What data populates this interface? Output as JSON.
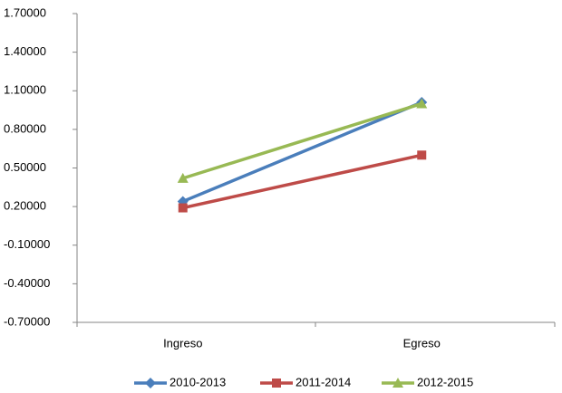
{
  "chart_data": {
    "type": "line",
    "categories": [
      "Ingreso",
      "Egreso"
    ],
    "series": [
      {
        "name": "2010-2013",
        "color": "#4a7ebb",
        "marker": "diamond",
        "values": [
          0.24,
          1.01
        ]
      },
      {
        "name": "2011-2014",
        "color": "#be4b48",
        "marker": "square",
        "values": [
          0.19,
          0.6
        ]
      },
      {
        "name": "2012-2015",
        "color": "#98b954",
        "marker": "triangle",
        "values": [
          0.42,
          1.0
        ]
      }
    ],
    "ylim": [
      -0.7,
      1.7
    ],
    "yticks": [
      {
        "value": -0.7,
        "label": "-0.70000"
      },
      {
        "value": -0.4,
        "label": "-0.40000"
      },
      {
        "value": -0.1,
        "label": "-0.10000"
      },
      {
        "value": 0.2,
        "label": "0.20000"
      },
      {
        "value": 0.5,
        "label": "0.50000"
      },
      {
        "value": 0.8,
        "label": "0.80000"
      },
      {
        "value": 1.1,
        "label": "1.10000"
      },
      {
        "value": 1.4,
        "label": "1.40000"
      },
      {
        "value": 1.7,
        "label": "1.70000"
      }
    ],
    "grid": false,
    "legend": "bottom"
  }
}
